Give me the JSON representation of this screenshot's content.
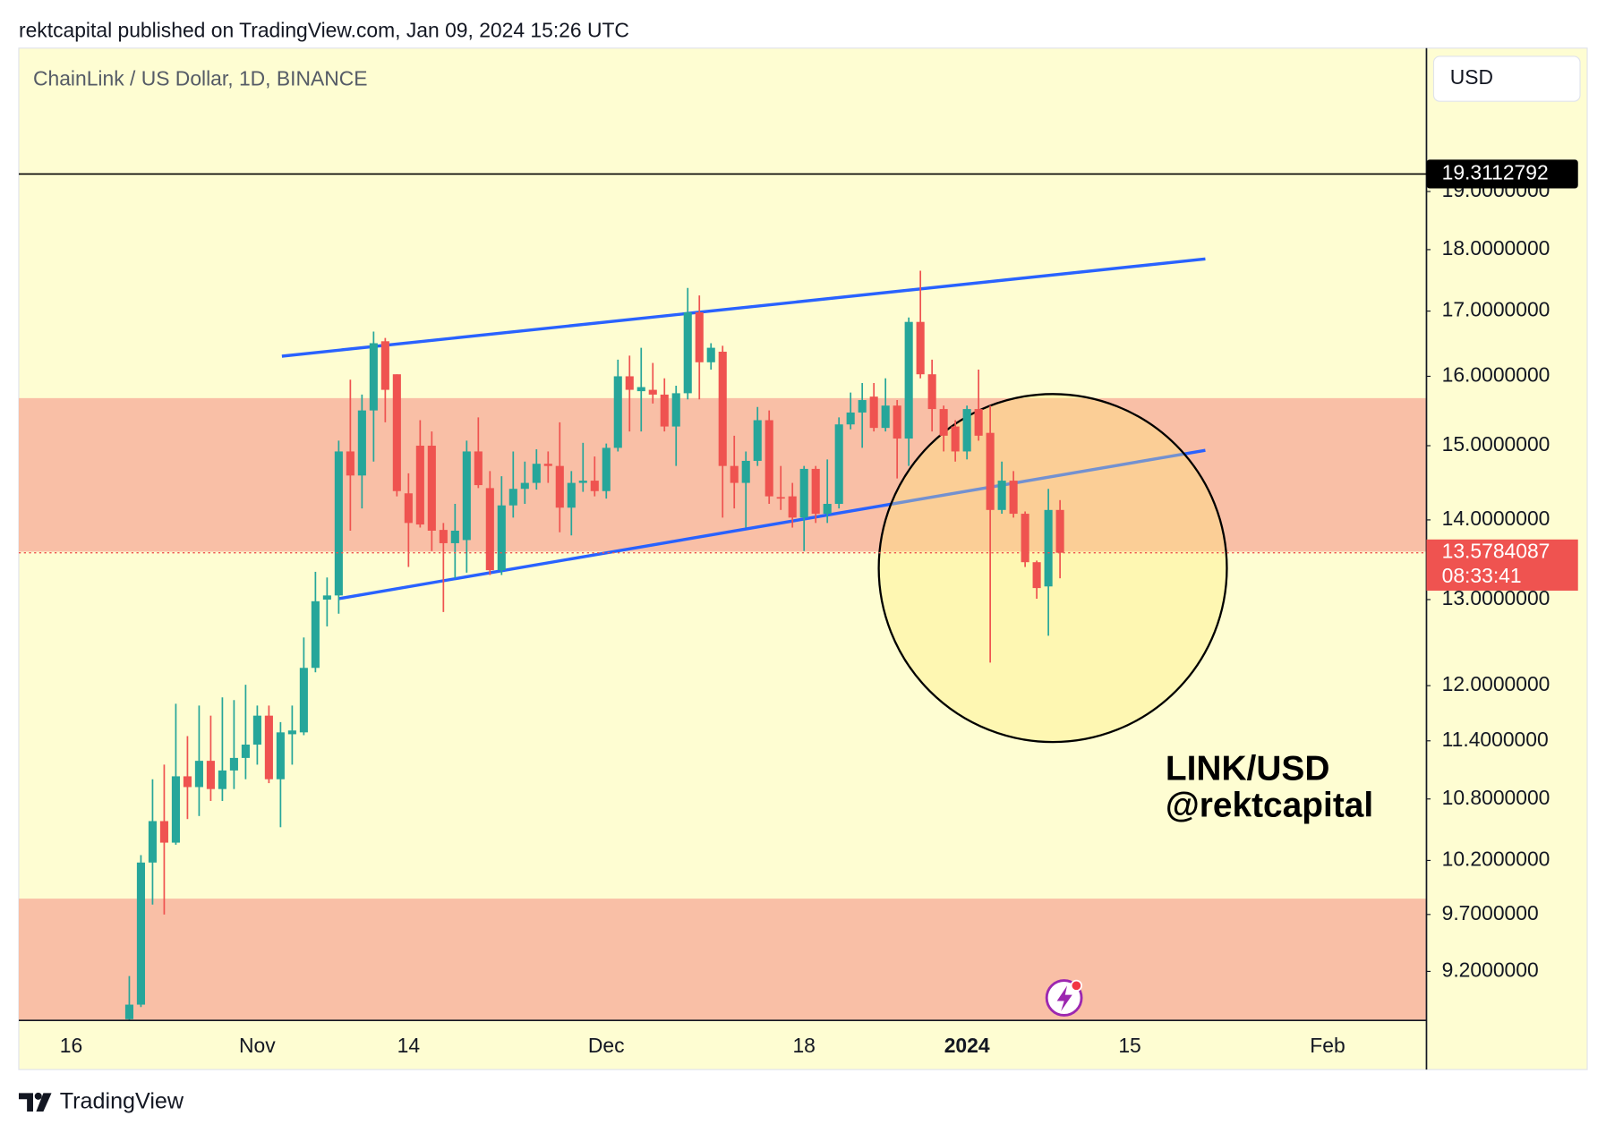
{
  "header": "rektcapital published on TradingView.com, Jan 09, 2024 15:26 UTC",
  "footer": "TradingView",
  "chart_data": {
    "type": "candlestick",
    "title": "ChainLink / US Dollar, 1D, BINANCE",
    "currency": "USD",
    "log_scale": true,
    "grid": false,
    "up_color": "#26a69a",
    "down_color": "#ef5350",
    "level": 19.3112792,
    "last_price": 13.5784087,
    "countdown": "08:33:41",
    "annotations": [
      "LINK/USD",
      "@rektcapital"
    ],
    "ylim": [
      8.79,
      21.71
    ],
    "yticks": [
      {
        "value": 19,
        "label": "19.0000000"
      },
      {
        "value": 18,
        "label": "18.0000000"
      },
      {
        "value": 17,
        "label": "17.0000000"
      },
      {
        "value": 16,
        "label": "16.0000000"
      },
      {
        "value": 15,
        "label": "15.0000000"
      },
      {
        "value": 14,
        "label": "14.0000000"
      },
      {
        "value": 13,
        "label": "13.0000000"
      },
      {
        "value": 12,
        "label": "12.0000000"
      },
      {
        "value": 11.4,
        "label": "11.4000000"
      },
      {
        "value": 10.8,
        "label": "10.8000000"
      },
      {
        "value": 10.2,
        "label": "10.2000000"
      },
      {
        "value": 9.7,
        "label": "9.7000000"
      },
      {
        "value": 9.2,
        "label": "9.2000000"
      }
    ],
    "categories": [
      null,
      null,
      null,
      null,
      "16",
      null,
      null,
      null,
      null,
      null,
      null,
      null,
      null,
      null,
      null,
      null,
      null,
      null,
      null,
      null,
      "Nov",
      null,
      null,
      null,
      null,
      null,
      null,
      null,
      null,
      null,
      null,
      null,
      null,
      "14",
      null,
      null,
      null,
      null,
      null,
      null,
      null,
      null,
      null,
      null,
      null,
      null,
      null,
      null,
      null,
      null,
      "Dec",
      null,
      null,
      null,
      null,
      null,
      null,
      null,
      null,
      null,
      null,
      null,
      null,
      null,
      null,
      null,
      null,
      "18",
      null,
      null,
      null,
      null,
      null,
      null,
      null,
      null,
      null,
      null,
      null,
      null,
      null,
      "2024",
      null,
      null,
      null,
      null,
      null,
      null,
      null,
      null,
      null,
      null,
      null,
      null,
      null,
      "15",
      null,
      null,
      null,
      null,
      null,
      null,
      null,
      null,
      null,
      null,
      null,
      null,
      null,
      null,
      null,
      null,
      "Feb",
      null,
      null,
      null,
      null,
      null,
      null,
      null,
      null
    ],
    "open": [
      null,
      null,
      null,
      null,
      null,
      null,
      null,
      null,
      null,
      8.8,
      8.92,
      10.18,
      10.58,
      10.37,
      11.03,
      10.92,
      11.19,
      10.9,
      11.09,
      11.22,
      11.36,
      11.67,
      11.0,
      11.47,
      11.49,
      12.2,
      13.0,
      13.05,
      14.92,
      14.59,
      15.5,
      16.53,
      16.03,
      14.35,
      15.0,
      15.0,
      13.87,
      13.7,
      13.74,
      14.92,
      14.42,
      13.36,
      14.19,
      14.41,
      14.49,
      14.75,
      14.72,
      14.16,
      14.49,
      14.52,
      14.38,
      14.97,
      16.0,
      15.78,
      15.8,
      15.73,
      15.27,
      15.75,
      16.98,
      16.21,
      16.37,
      14.72,
      14.49,
      14.79,
      15.36,
      14.3,
      14.31,
      14.03,
      14.68,
      14.08,
      14.21,
      15.3,
      15.47,
      15.7,
      15.25,
      15.57,
      15.1,
      16.83,
      16.03,
      15.52,
      15.27,
      14.92,
      15.52,
      15.18,
      14.13,
      14.52,
      14.08,
      13.46,
      13.16,
      14.13,
      null,
      null,
      null,
      null,
      null,
      null,
      null,
      null,
      null,
      null,
      null,
      null,
      null,
      null,
      null,
      null,
      null,
      null,
      null,
      null,
      null,
      null,
      null,
      null,
      null,
      null,
      null,
      null,
      null,
      null,
      null
    ],
    "high": [
      null,
      null,
      null,
      null,
      null,
      null,
      null,
      null,
      null,
      9.16,
      10.25,
      11.0,
      11.15,
      11.8,
      11.45,
      11.78,
      11.67,
      11.87,
      11.84,
      12.01,
      11.78,
      11.78,
      11.6,
      11.78,
      12.55,
      13.34,
      13.27,
      15.07,
      15.95,
      15.73,
      16.68,
      16.58,
      16.03,
      14.62,
      15.36,
      15.2,
      13.96,
      14.21,
      15.07,
      15.4,
      14.65,
      14.58,
      14.92,
      14.78,
      14.95,
      14.92,
      15.33,
      14.65,
      15.04,
      14.85,
      15.03,
      16.25,
      16.31,
      16.43,
      16.2,
      15.97,
      15.86,
      17.37,
      17.25,
      16.5,
      16.46,
      15.14,
      14.92,
      15.55,
      15.5,
      14.72,
      14.49,
      14.72,
      14.72,
      14.81,
      15.4,
      15.76,
      15.9,
      15.9,
      15.97,
      15.65,
      16.9,
      17.65,
      16.25,
      15.57,
      15.36,
      15.57,
      16.1,
      15.57,
      14.78,
      14.65,
      14.11,
      13.48,
      14.41,
      14.26,
      null,
      null,
      null,
      null,
      null,
      null,
      null,
      null,
      null,
      null,
      null,
      null,
      null,
      null,
      null,
      null,
      null,
      null,
      null,
      null,
      null,
      null,
      null,
      null,
      null,
      null,
      null,
      null,
      null,
      null,
      null
    ],
    "low": [
      null,
      null,
      null,
      null,
      null,
      null,
      null,
      null,
      null,
      8.75,
      8.9,
      9.79,
      9.7,
      10.35,
      10.6,
      10.63,
      10.78,
      10.78,
      10.9,
      11.0,
      11.15,
      10.96,
      10.52,
      11.15,
      11.46,
      12.15,
      12.68,
      12.83,
      13.86,
      14.15,
      14.78,
      15.33,
      14.31,
      13.4,
      13.9,
      13.6,
      12.85,
      13.26,
      13.33,
      14.42,
      13.3,
      13.3,
      14.03,
      14.21,
      14.4,
      14.49,
      13.84,
      13.8,
      14.37,
      14.31,
      14.28,
      14.92,
      15.2,
      15.2,
      15.6,
      15.2,
      14.72,
      15.66,
      15.66,
      16.1,
      14.03,
      14.15,
      13.9,
      14.72,
      14.21,
      14.13,
      13.9,
      13.6,
      13.96,
      13.96,
      14.15,
      15.23,
      14.97,
      15.2,
      15.2,
      14.55,
      14.72,
      15.97,
      15.2,
      14.92,
      14.78,
      14.81,
      15.07,
      12.26,
      14.08,
      14.03,
      13.4,
      13.01,
      12.57,
      13.26,
      null,
      null,
      null,
      null,
      null,
      null,
      null,
      null,
      null,
      null,
      null,
      null,
      null,
      null,
      null,
      null,
      null,
      null,
      null,
      null,
      null,
      null,
      null,
      null,
      null,
      null,
      null,
      null,
      null,
      null,
      null
    ],
    "close": [
      null,
      null,
      null,
      null,
      null,
      null,
      null,
      null,
      null,
      8.92,
      10.18,
      10.58,
      10.37,
      11.03,
      10.92,
      11.19,
      10.9,
      11.09,
      11.22,
      11.36,
      11.67,
      11.0,
      11.49,
      11.51,
      12.2,
      12.98,
      13.05,
      14.92,
      14.59,
      15.5,
      16.5,
      15.8,
      14.38,
      13.96,
      13.94,
      13.86,
      13.7,
      13.86,
      14.92,
      14.46,
      13.36,
      14.19,
      14.41,
      14.49,
      14.75,
      14.72,
      14.16,
      14.49,
      14.52,
      14.38,
      14.97,
      16.0,
      15.8,
      15.84,
      15.73,
      15.27,
      15.75,
      16.98,
      16.21,
      16.43,
      14.72,
      14.49,
      14.79,
      15.36,
      14.31,
      14.29,
      14.03,
      14.68,
      14.08,
      14.21,
      15.3,
      15.47,
      15.65,
      15.25,
      15.57,
      15.1,
      16.83,
      16.03,
      15.52,
      15.14,
      14.92,
      15.52,
      15.14,
      14.13,
      14.52,
      14.08,
      13.46,
      13.14,
      14.13,
      13.5784087,
      null,
      null,
      null,
      null,
      null,
      null,
      null,
      null,
      null,
      null,
      null,
      null,
      null,
      null,
      null,
      null,
      null,
      null,
      null,
      null,
      null,
      null,
      null,
      null,
      null,
      null,
      null,
      null,
      null,
      null,
      null
    ]
  }
}
